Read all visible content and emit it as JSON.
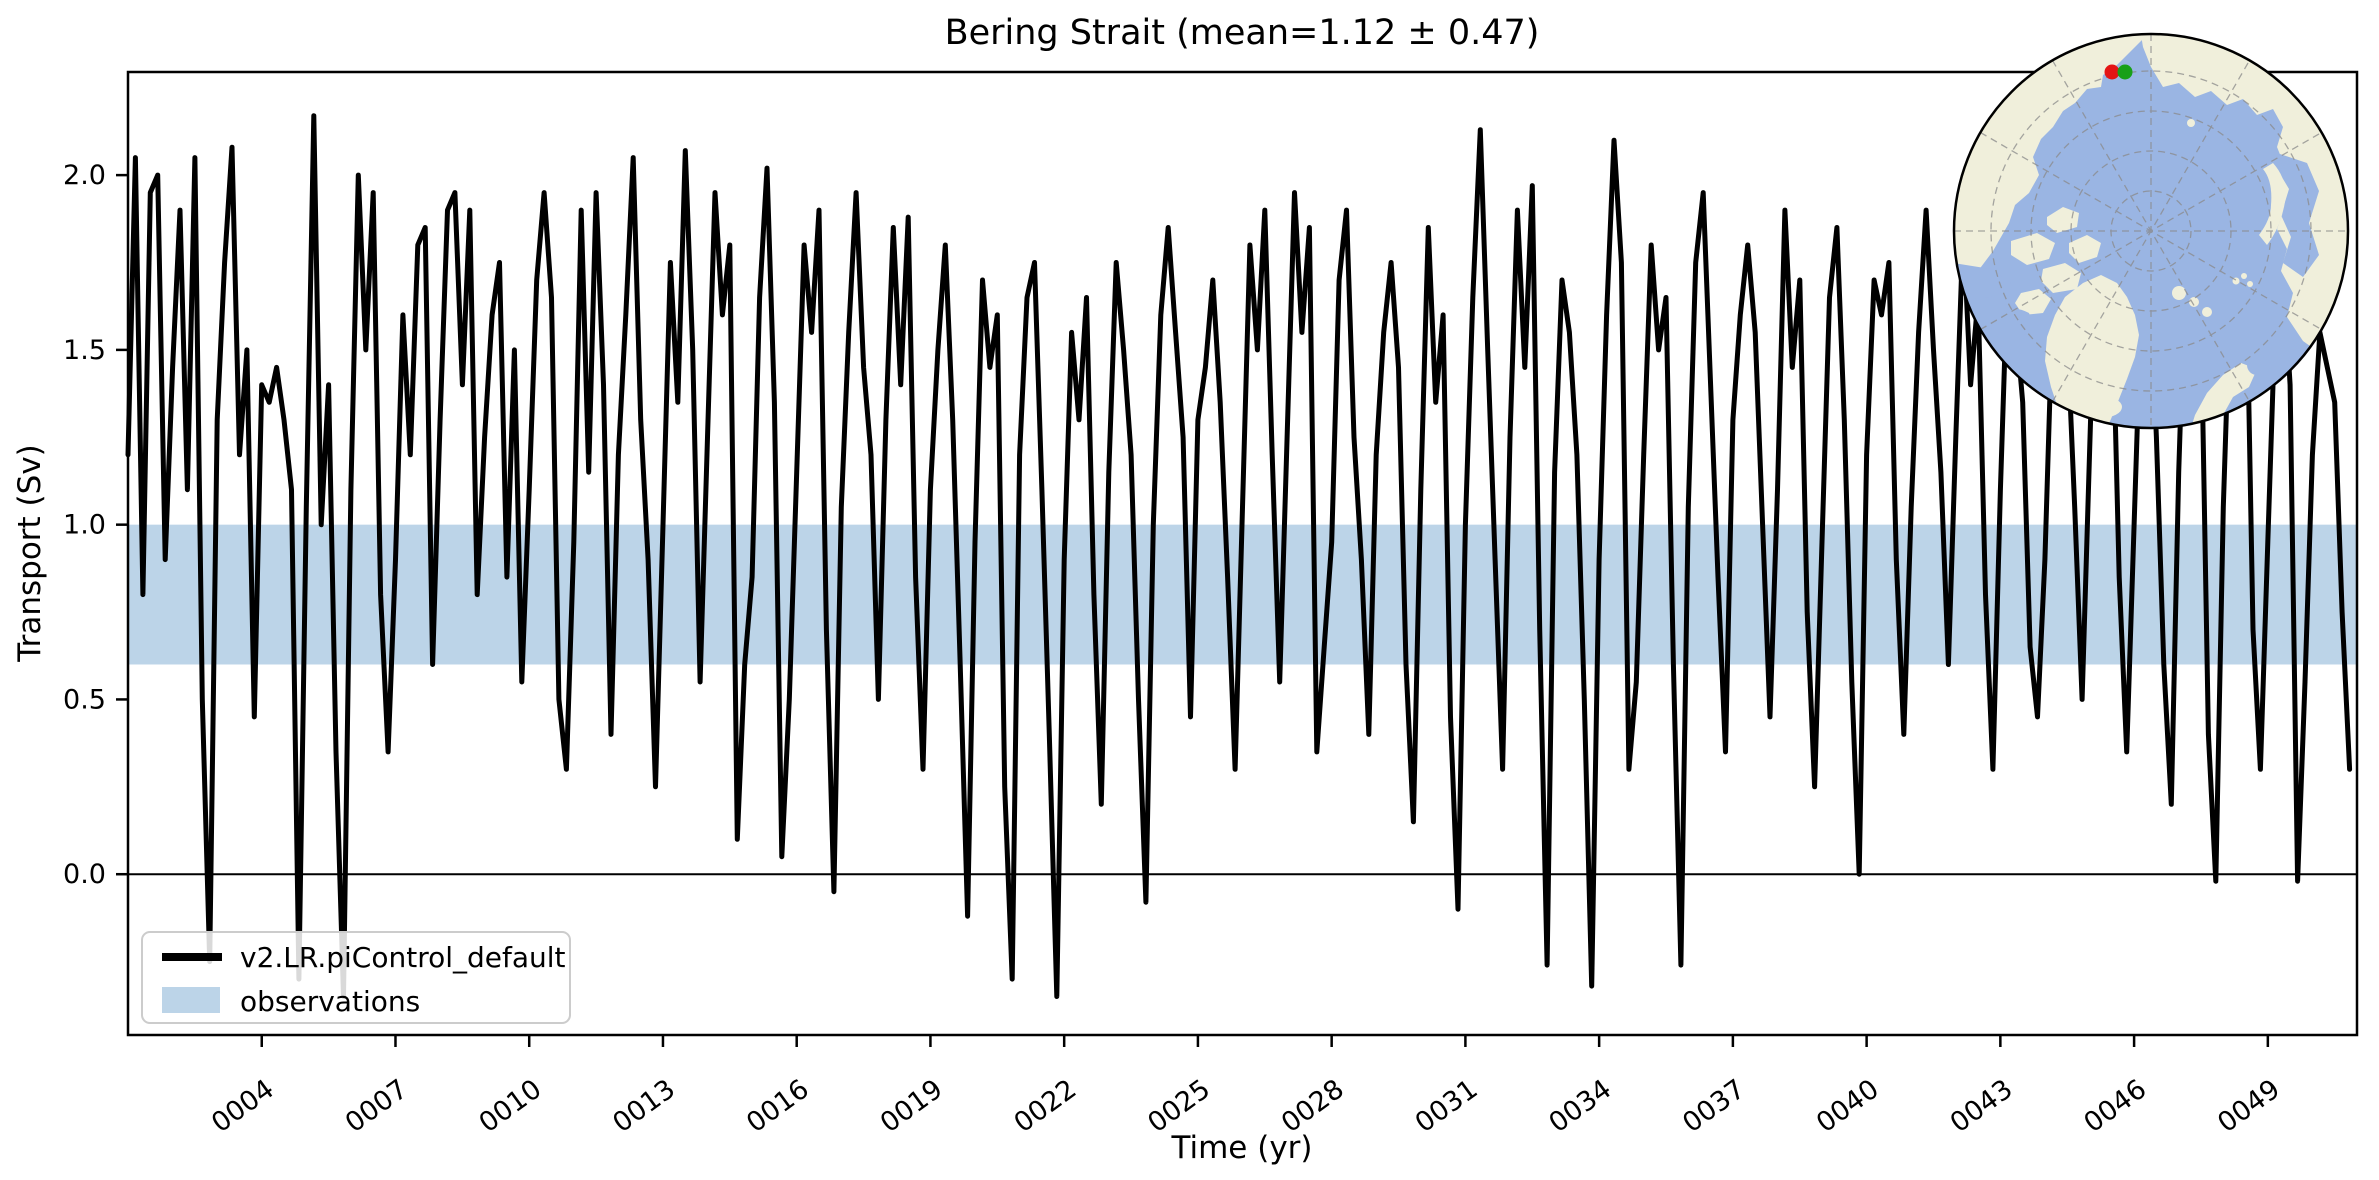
{
  "title": "Bering Strait (mean=1.12 ± 0.47)",
  "xlabel": "Time (yr)",
  "ylabel": "Transport (Sv)",
  "legend": {
    "line_label": "v2.LR.piControl_default",
    "band_label": "observations"
  },
  "colors": {
    "series_line": "#000000",
    "obs_band": "#bcd4e8",
    "zero_line": "#000000",
    "legend_border": "#cccccc",
    "map_ocean": "#9ab5e3",
    "map_land": "#f0efdb",
    "map_grid": "#8a8a8a",
    "marker_red": "#e41414",
    "marker_green": "#18a018"
  },
  "chart_data": {
    "type": "line",
    "title": "Bering Strait (mean=1.12 ± 0.47)",
    "xlabel": "Time (yr)",
    "ylabel": "Transport (Sv)",
    "xlim": [
      1,
      51
    ],
    "ylim": [
      -0.46,
      2.295
    ],
    "grid": false,
    "legend_position": "lower left",
    "xtick_years": [
      4,
      7,
      10,
      13,
      16,
      19,
      22,
      25,
      28,
      31,
      34,
      37,
      40,
      43,
      46,
      49
    ],
    "xtick_labels": [
      "0004",
      "0007",
      "0010",
      "0013",
      "0016",
      "0019",
      "0022",
      "0025",
      "0028",
      "0031",
      "0034",
      "0037",
      "0040",
      "0043",
      "0046",
      "0049"
    ],
    "ytick_values": [
      0.0,
      0.5,
      1.0,
      1.5,
      2.0
    ],
    "ytick_labels": [
      "0.0",
      "0.5",
      "1.0",
      "1.5",
      "2.0"
    ],
    "zero_line": 0.0,
    "reference_band": {
      "label": "observations",
      "low": 0.6,
      "high": 1.0
    },
    "series": [
      {
        "name": "v2.LR.piControl_default",
        "stat_mean": 1.12,
        "stat_std": 0.47,
        "x_start_year": 1.0,
        "x_step_years": 0.1666667,
        "values": [
          1.2,
          2.05,
          0.8,
          1.95,
          2.0,
          0.9,
          1.45,
          1.9,
          1.1,
          2.05,
          0.5,
          -0.25,
          1.3,
          1.75,
          2.08,
          1.2,
          1.5,
          0.45,
          1.4,
          1.35,
          1.45,
          1.3,
          1.1,
          -0.3,
          1.05,
          2.17,
          1.0,
          1.4,
          0.35,
          -0.35,
          1.1,
          2.0,
          1.5,
          1.95,
          0.8,
          0.35,
          0.9,
          1.6,
          1.2,
          1.8,
          1.85,
          0.6,
          1.3,
          1.9,
          1.95,
          1.4,
          1.9,
          0.8,
          1.25,
          1.6,
          1.75,
          0.85,
          1.5,
          0.55,
          1.1,
          1.7,
          1.95,
          1.65,
          0.5,
          0.3,
          0.95,
          1.9,
          1.15,
          1.95,
          1.4,
          0.4,
          1.2,
          1.6,
          2.05,
          1.3,
          0.9,
          0.25,
          1.0,
          1.75,
          1.35,
          2.07,
          1.5,
          0.55,
          1.25,
          1.95,
          1.6,
          1.8,
          0.1,
          0.6,
          0.85,
          1.65,
          2.02,
          1.35,
          0.05,
          0.5,
          1.15,
          1.8,
          1.55,
          1.9,
          0.7,
          -0.05,
          1.05,
          1.55,
          1.95,
          1.45,
          1.2,
          0.5,
          1.3,
          1.85,
          1.4,
          1.88,
          0.85,
          0.3,
          1.1,
          1.5,
          1.8,
          1.3,
          0.6,
          -0.12,
          0.95,
          1.7,
          1.45,
          1.6,
          0.25,
          -0.3,
          1.2,
          1.65,
          1.75,
          1.1,
          0.4,
          -0.35,
          0.9,
          1.55,
          1.3,
          1.65,
          0.8,
          0.2,
          1.15,
          1.75,
          1.5,
          1.2,
          0.5,
          -0.08,
          1.0,
          1.6,
          1.85,
          1.55,
          1.25,
          0.45,
          1.3,
          1.45,
          1.7,
          1.35,
          0.85,
          0.3,
          1.05,
          1.8,
          1.5,
          1.9,
          1.2,
          0.55,
          1.25,
          1.95,
          1.55,
          1.85,
          0.35,
          0.65,
          0.95,
          1.7,
          1.9,
          1.25,
          0.9,
          0.4,
          1.2,
          1.55,
          1.75,
          1.45,
          0.6,
          0.15,
          1.1,
          1.85,
          1.35,
          1.6,
          0.45,
          -0.1,
          1.0,
          1.65,
          2.13,
          1.5,
          0.9,
          0.3,
          1.25,
          1.9,
          1.45,
          1.97,
          0.7,
          -0.26,
          1.15,
          1.7,
          1.55,
          1.2,
          0.5,
          -0.32,
          0.9,
          1.6,
          2.1,
          1.75,
          0.3,
          0.55,
          1.2,
          1.8,
          1.5,
          1.65,
          0.6,
          -0.26,
          1.05,
          1.75,
          1.95,
          1.4,
          0.85,
          0.35,
          1.3,
          1.6,
          1.8,
          1.55,
          1.0,
          0.45,
          1.1,
          1.9,
          1.45,
          1.7,
          0.75,
          0.25,
          0.95,
          1.65,
          1.85,
          1.3,
          0.55,
          0.0,
          1.2,
          1.7,
          1.6,
          1.75,
          0.9,
          0.4,
          1.05,
          1.55,
          1.9,
          1.5,
          1.15,
          0.6,
          1.25,
          1.85,
          1.4,
          1.65,
          0.8,
          0.3,
          1.1,
          1.75,
          1.6,
          1.35,
          0.65,
          0.45,
          0.9,
          1.6,
          1.8,
          1.55,
          1.05,
          0.5,
          1.2,
          1.9,
          1.5,
          1.7,
          0.85,
          0.35,
          1.0,
          1.65,
          1.75,
          1.25,
          0.6,
          0.2,
          1.15,
          1.8,
          1.55,
          1.6,
          0.4,
          -0.02,
          1.05,
          1.7,
          1.45,
          1.85,
          0.7,
          0.3,
          0.95,
          1.6,
          1.75,
          1.4,
          -0.02,
          0.55,
          1.2,
          1.55,
          1.45,
          1.35,
          0.75,
          0.3
        ]
      }
    ]
  },
  "inset_map": {
    "description": "Arctic polar stereographic locator map",
    "markers": [
      {
        "name": "model-section-marker",
        "color_key": "marker_red"
      },
      {
        "name": "obs-section-marker",
        "color_key": "marker_green"
      }
    ]
  }
}
